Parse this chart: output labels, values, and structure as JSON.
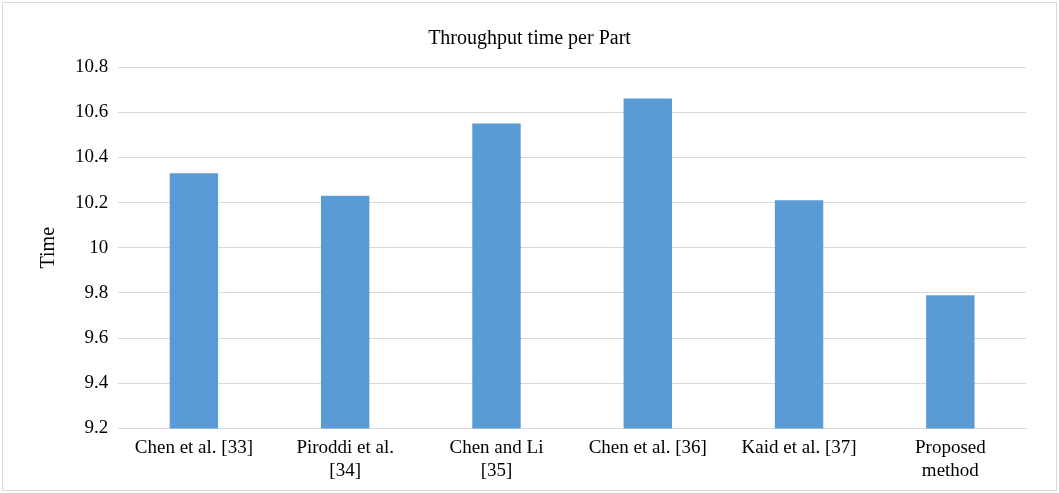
{
  "chart_data": {
    "type": "bar",
    "title": "Throughput time per Part",
    "ylabel": "Time",
    "categories": [
      "Chen et al. [33]",
      "Piroddi et al. [34]",
      "Chen and Li [35]",
      "Chen et al. [36]",
      "Kaid et al. [37]",
      "Proposed method"
    ],
    "values": [
      10.33,
      10.23,
      10.55,
      10.66,
      10.21,
      9.79
    ],
    "color": "#5b9bd5",
    "ylim": [
      9.2,
      10.8
    ],
    "yticks": [
      9.2,
      9.4,
      9.6,
      9.8,
      10,
      10.2,
      10.4,
      10.6,
      10.8
    ],
    "grid": "y",
    "legend": false
  }
}
